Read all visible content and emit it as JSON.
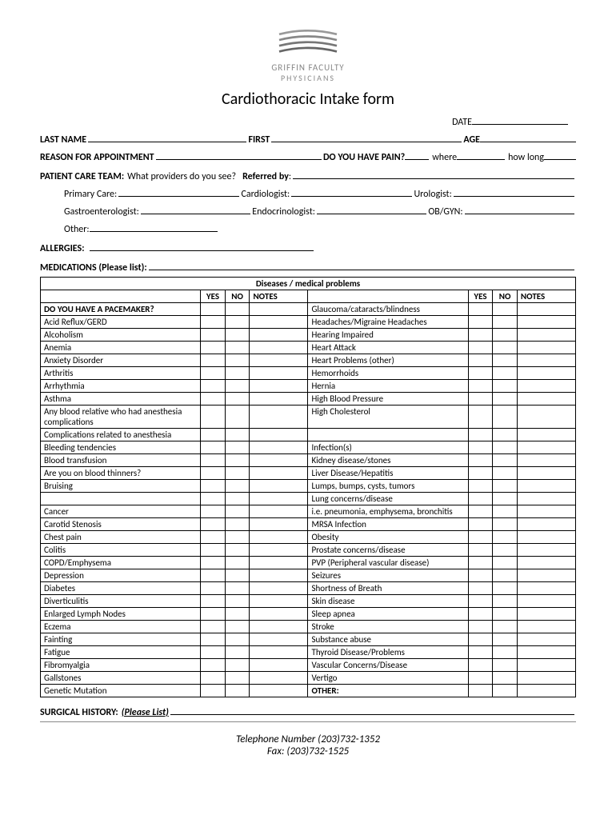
{
  "org": {
    "line1": "GRIFFIN FACULTY",
    "line2": "PHYSICIANS"
  },
  "title": "Cardiothoracic Intake form",
  "labels": {
    "date": "DATE",
    "lastName": "LAST NAME",
    "first": "FIRST",
    "age": "AGE",
    "reason": "REASON FOR APPOINTMENT",
    "pain": "DO YOU HAVE PAIN?",
    "where": "where",
    "howLong": "how long",
    "careTeam": "PATIENT CARE TEAM:",
    "careTeamQ": "What providers do you see?",
    "referredBy": "Referred by",
    "primaryCare": "Primary Care:",
    "cardiologist": "Cardiologist:",
    "urologist": "Urologist:",
    "gastro": "Gastroenterologist:",
    "endo": "Endocrinologist:",
    "obgyn": "OB/GYN:",
    "other": "Other:",
    "allergies": "ALLERGIES:",
    "medications": "MEDICATIONS (Please list):",
    "surgical": "SURGICAL HISTORY:",
    "pleaseList": "(Please List)"
  },
  "table": {
    "header": "Diseases / medical problems",
    "yes": "YES",
    "no": "NO",
    "notes": "NOTES",
    "pacemaker": "DO YOU HAVE A PACEMAKER?",
    "otherRow": "OTHER:",
    "left": [
      "Acid Reflux/GERD",
      "Alcoholism",
      "Anemia",
      "Anxiety Disorder",
      "Arthritis",
      "Arrhythmia",
      "Asthma",
      "Any blood relative who had anesthesia complications",
      "Complications related to anesthesia",
      "Bleeding tendencies",
      "Blood transfusion",
      "Are you on blood thinners?",
      "Bruising",
      "",
      "Cancer",
      "Carotid Stenosis",
      "Chest pain",
      "Colitis",
      "COPD/Emphysema",
      "Depression",
      "Diabetes",
      "Diverticulitis",
      "Enlarged Lymph Nodes",
      "Eczema",
      "Fainting",
      "Fatigue",
      "Fibromyalgia",
      "Gallstones",
      "Genetic Mutation"
    ],
    "right": [
      "Glaucoma/cataracts/blindness",
      "Headaches/Migraine Headaches",
      "Hearing Impaired",
      "Heart Attack",
      "Heart Problems (other)",
      "Hemorrhoids",
      "Hernia",
      "High Blood Pressure",
      "High Cholesterol",
      "",
      "Infection(s)",
      "Kidney disease/stones",
      "Liver Disease/Hepatitis",
      "Lumps, bumps, cysts, tumors",
      "Lung concerns/disease",
      "i.e. pneumonia, emphysema, bronchitis",
      "MRSA Infection",
      "Obesity",
      "Prostate concerns/disease",
      "PVP (Peripheral vascular disease)",
      "Seizures",
      "Shortness of Breath",
      "Skin disease",
      "Sleep apnea",
      "Stroke",
      "Substance abuse",
      "Thyroid Disease/Problems",
      "Vascular Concerns/Disease",
      "Vertigo"
    ]
  },
  "footer": {
    "phone": "Telephone Number (203)732-1352",
    "fax": "Fax: (203)732-1525"
  }
}
